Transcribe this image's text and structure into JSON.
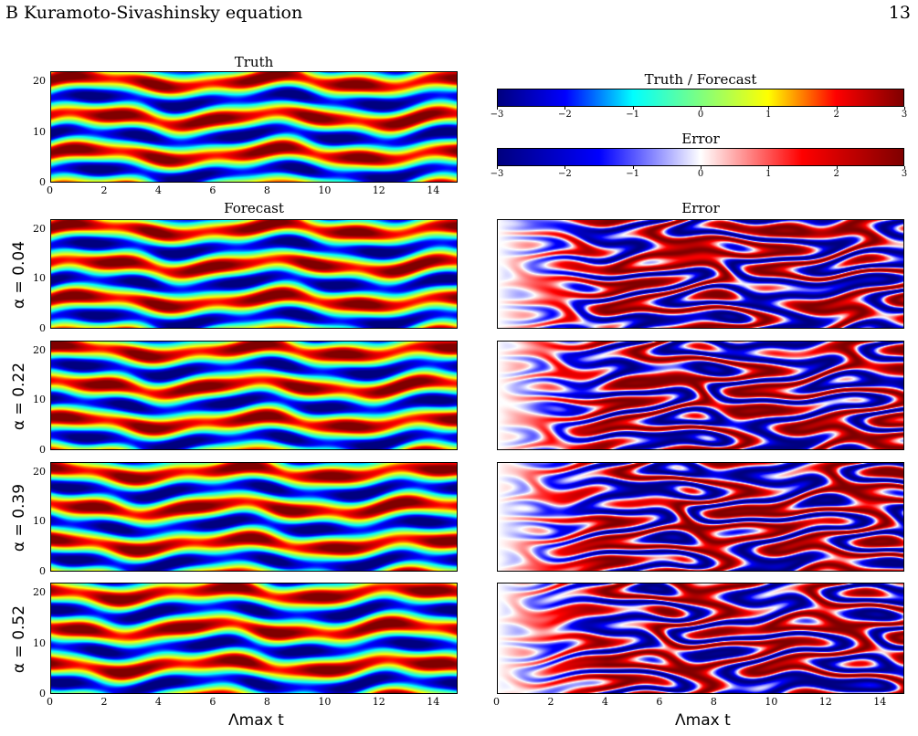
{
  "header": {
    "section": "B   Kuramoto-Sivashinsky equation",
    "page": "13"
  },
  "titles": {
    "truth": "Truth",
    "forecast": "Forecast",
    "error": "Error",
    "cbar_truth": "Truth / Forecast",
    "cbar_error": "Error"
  },
  "ylabels": [
    "α = 0.04",
    "α = 0.22",
    "α = 0.39",
    "α = 0.52"
  ],
  "xlabel": "Λmax t",
  "xticks": [
    "0",
    "2",
    "4",
    "6",
    "8",
    "10",
    "12",
    "14"
  ],
  "yticks": [
    "0",
    "10",
    "20"
  ],
  "cbar_ticks": [
    "−3",
    "−2",
    "−1",
    "0",
    "1",
    "2",
    "3"
  ],
  "colormaps": {
    "truth": [
      "#00007f",
      "#0000ff",
      "#00ffff",
      "#7fff7f",
      "#ffff00",
      "#ff0000",
      "#7f0000"
    ],
    "error": [
      "#00007f",
      "#0000ff",
      "#ffffff",
      "#ff0000",
      "#7f0000"
    ]
  }
}
